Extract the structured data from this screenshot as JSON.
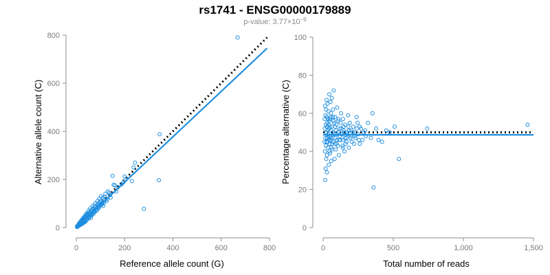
{
  "header": {
    "title": "rs1741 - ENSG00000179889",
    "pvalue_prefix": "p-value: 3.77×10",
    "pvalue_exponent": "−9"
  },
  "colors": {
    "points": "#1f8ee0",
    "fit_line": "#1f8ee0",
    "reference_line": "#000000",
    "axis": "#8c8c8c"
  },
  "chart_data": [
    {
      "type": "scatter",
      "xlabel": "Reference allele count (G)",
      "ylabel": "Alternative allele count (C)",
      "xlim": [
        0,
        800
      ],
      "ylim": [
        0,
        800
      ],
      "xticks": [
        0,
        200,
        400,
        600,
        800
      ],
      "yticks": [
        0,
        200,
        400,
        600,
        800
      ],
      "xtick_labels": [
        "0",
        "200",
        "400",
        "600",
        "800"
      ],
      "ytick_labels": [
        "0",
        "200",
        "400",
        "600",
        "800"
      ],
      "reference_line": {
        "style": "dotted",
        "x": [
          0,
          790
        ],
        "y": [
          0,
          790
        ]
      },
      "fit_line": {
        "style": "solid",
        "x": [
          0,
          790
        ],
        "y": [
          0,
          745
        ]
      },
      "points": [
        [
          668,
          790
        ],
        [
          345,
          388
        ],
        [
          342,
          197
        ],
        [
          280,
          78
        ],
        [
          243,
          270
        ],
        [
          237,
          250
        ],
        [
          230,
          193
        ],
        [
          208,
          203
        ],
        [
          195,
          188
        ],
        [
          200,
          212
        ],
        [
          188,
          180
        ],
        [
          172,
          168
        ],
        [
          165,
          150
        ],
        [
          150,
          215
        ],
        [
          155,
          178
        ],
        [
          160,
          175
        ],
        [
          140,
          135
        ],
        [
          130,
          150
        ],
        [
          120,
          140
        ],
        [
          125,
          110
        ],
        [
          110,
          125
        ],
        [
          115,
          105
        ],
        [
          100,
          110
        ],
        [
          105,
          95
        ],
        [
          95,
          120
        ],
        [
          90,
          100
        ],
        [
          92,
          80
        ],
        [
          85,
          95
        ],
        [
          80,
          85
        ],
        [
          82,
          75
        ],
        [
          78,
          100
        ],
        [
          75,
          70
        ],
        [
          72,
          80
        ],
        [
          70,
          65
        ],
        [
          68,
          90
        ],
        [
          65,
          60
        ],
        [
          62,
          72
        ],
        [
          60,
          55
        ],
        [
          58,
          68
        ],
        [
          55,
          62
        ],
        [
          52,
          50
        ],
        [
          50,
          58
        ],
        [
          48,
          45
        ],
        [
          47,
          55
        ],
        [
          45,
          50
        ],
        [
          44,
          40
        ],
        [
          42,
          48
        ],
        [
          40,
          38
        ],
        [
          39,
          45
        ],
        [
          38,
          35
        ],
        [
          36,
          42
        ],
        [
          35,
          30
        ],
        [
          34,
          38
        ],
        [
          33,
          28
        ],
        [
          32,
          36
        ],
        [
          30,
          33
        ],
        [
          29,
          25
        ],
        [
          28,
          31
        ],
        [
          27,
          30
        ],
        [
          26,
          22
        ],
        [
          25,
          28
        ],
        [
          24,
          26
        ],
        [
          23,
          20
        ],
        [
          22,
          25
        ],
        [
          21,
          23
        ],
        [
          20,
          18
        ],
        [
          20,
          22
        ],
        [
          19,
          21
        ],
        [
          18,
          17
        ],
        [
          18,
          20
        ],
        [
          17,
          19
        ],
        [
          16,
          15
        ],
        [
          16,
          18
        ],
        [
          15,
          17
        ],
        [
          14,
          13
        ],
        [
          14,
          16
        ],
        [
          13,
          15
        ],
        [
          12,
          11
        ],
        [
          12,
          14
        ],
        [
          11,
          13
        ],
        [
          10,
          9
        ],
        [
          10,
          12
        ],
        [
          9,
          11
        ],
        [
          9,
          8
        ],
        [
          8,
          10
        ],
        [
          8,
          7
        ],
        [
          7,
          9
        ],
        [
          7,
          6
        ],
        [
          6,
          8
        ],
        [
          6,
          5
        ],
        [
          5,
          7
        ],
        [
          5,
          4
        ],
        [
          4,
          6
        ],
        [
          4,
          3
        ],
        [
          3,
          5
        ],
        [
          3,
          2
        ],
        [
          60,
          40
        ],
        [
          55,
          45
        ],
        [
          65,
          75
        ],
        [
          70,
          55
        ],
        [
          75,
          88
        ],
        [
          85,
          70
        ],
        [
          88,
          110
        ],
        [
          95,
          85
        ],
        [
          98,
          105
        ],
        [
          102,
          130
        ],
        [
          108,
          98
        ],
        [
          112,
          90
        ],
        [
          118,
          128
        ],
        [
          128,
          118
        ],
        [
          135,
          145
        ],
        [
          142,
          125
        ],
        [
          58,
          80
        ],
        [
          50,
          70
        ],
        [
          45,
          60
        ],
        [
          40,
          55
        ],
        [
          35,
          48
        ],
        [
          31,
          42
        ],
        [
          28,
          38
        ],
        [
          26,
          35
        ],
        [
          24,
          32
        ],
        [
          22,
          30
        ],
        [
          21,
          28
        ],
        [
          19,
          26
        ],
        [
          17,
          24
        ],
        [
          15,
          21
        ],
        [
          13,
          19
        ],
        [
          11,
          17
        ],
        [
          38,
          25
        ],
        [
          33,
          22
        ],
        [
          30,
          20
        ],
        [
          27,
          18
        ],
        [
          25,
          16
        ],
        [
          23,
          15
        ],
        [
          20,
          14
        ],
        [
          18,
          12
        ],
        [
          16,
          11
        ],
        [
          14,
          10
        ],
        [
          12,
          9
        ],
        [
          10,
          7
        ],
        [
          42,
          30
        ],
        [
          46,
          35
        ],
        [
          52,
          40
        ],
        [
          57,
          48
        ],
        [
          62,
          50
        ],
        [
          66,
          58
        ],
        [
          73,
          62
        ],
        [
          77,
          66
        ],
        [
          83,
          78
        ],
        [
          87,
          82
        ],
        [
          92,
          90
        ],
        [
          97,
          92
        ],
        [
          103,
          100
        ],
        [
          107,
          102
        ],
        [
          113,
          112
        ],
        [
          117,
          114
        ]
      ]
    },
    {
      "type": "scatter",
      "xlabel": "Total number of reads",
      "ylabel": "Percentage alternative (C)",
      "xlim": [
        0,
        1500
      ],
      "ylim": [
        0,
        100
      ],
      "xticks": [
        0,
        500,
        1000,
        1500
      ],
      "yticks": [
        0,
        20,
        40,
        60,
        80,
        100
      ],
      "xtick_labels": [
        "0",
        "500",
        "1,000",
        "1,500"
      ],
      "ytick_labels": [
        "0",
        "20",
        "40",
        "60",
        "80",
        "100"
      ],
      "reference_line": {
        "style": "dotted",
        "x": [
          0,
          1500
        ],
        "y": [
          50,
          50
        ]
      },
      "fit_line": {
        "style": "solid",
        "x": [
          0,
          1500
        ],
        "y": [
          48.7,
          48.7
        ]
      },
      "points": [
        [
          1458,
          54
        ],
        [
          742,
          52
        ],
        [
          540,
          36
        ],
        [
          360,
          21
        ],
        [
          352,
          60
        ],
        [
          378,
          52
        ],
        [
          395,
          46
        ],
        [
          420,
          45
        ],
        [
          450,
          51
        ],
        [
          475,
          50
        ],
        [
          510,
          53
        ],
        [
          320,
          55
        ],
        [
          305,
          48
        ],
        [
          290,
          50
        ],
        [
          280,
          46
        ],
        [
          270,
          52
        ],
        [
          262,
          44
        ],
        [
          250,
          49
        ],
        [
          245,
          55
        ],
        [
          238,
          58
        ],
        [
          230,
          47
        ],
        [
          222,
          50
        ],
        [
          215,
          53
        ],
        [
          205,
          45
        ],
        [
          198,
          48
        ],
        [
          190,
          55
        ],
        [
          183,
          42
        ],
        [
          178,
          59
        ],
        [
          170,
          50
        ],
        [
          165,
          47
        ],
        [
          158,
          54
        ],
        [
          152,
          40
        ],
        [
          148,
          51
        ],
        [
          142,
          57
        ],
        [
          138,
          43
        ],
        [
          132,
          49
        ],
        [
          128,
          60
        ],
        [
          122,
          46
        ],
        [
          118,
          52
        ],
        [
          112,
          38
        ],
        [
          108,
          56
        ],
        [
          104,
          49
        ],
        [
          100,
          63
        ],
        [
          96,
          44
        ],
        [
          92,
          51
        ],
        [
          88,
          47
        ],
        [
          85,
          58
        ],
        [
          82,
          36
        ],
        [
          78,
          55
        ],
        [
          75,
          72
        ],
        [
          72,
          45
        ],
        [
          70,
          62
        ],
        [
          68,
          50
        ],
        [
          65,
          41
        ],
        [
          62,
          68
        ],
        [
          60,
          53
        ],
        [
          58,
          35
        ],
        [
          56,
          60
        ],
        [
          54,
          47
        ],
        [
          52,
          66
        ],
        [
          50,
          39
        ],
        [
          48,
          57
        ],
        [
          46,
          44
        ],
        [
          44,
          70
        ],
        [
          42,
          52
        ],
        [
          40,
          33
        ],
        [
          38,
          61
        ],
        [
          36,
          48
        ],
        [
          34,
          42
        ],
        [
          32,
          65
        ],
        [
          30,
          55
        ],
        [
          28,
          38
        ],
        [
          27,
          29
        ],
        [
          26,
          58
        ],
        [
          25,
          45
        ],
        [
          24,
          67
        ],
        [
          23,
          50
        ],
        [
          22,
          36
        ],
        [
          21,
          62
        ],
        [
          20,
          43
        ],
        [
          19,
          54
        ],
        [
          18,
          31
        ],
        [
          17,
          59
        ],
        [
          16,
          47
        ],
        [
          15,
          25
        ],
        [
          14,
          64
        ],
        [
          13,
          40
        ],
        [
          12,
          52
        ],
        [
          11,
          57
        ],
        [
          10,
          45
        ],
        [
          120,
          48
        ],
        [
          130,
          52
        ],
        [
          140,
          46
        ],
        [
          150,
          50
        ],
        [
          160,
          44
        ],
        [
          175,
          49
        ],
        [
          185,
          51
        ],
        [
          195,
          47
        ],
        [
          210,
          50
        ],
        [
          225,
          48
        ],
        [
          240,
          52
        ],
        [
          255,
          46
        ],
        [
          90,
          41
        ],
        [
          95,
          54
        ],
        [
          105,
          43
        ],
        [
          110,
          57
        ],
        [
          115,
          46
        ],
        [
          125,
          55
        ],
        [
          135,
          49
        ],
        [
          145,
          53
        ],
        [
          155,
          47
        ],
        [
          168,
          45
        ],
        [
          80,
          49
        ],
        [
          86,
          53
        ],
        [
          66,
          47
        ],
        [
          74,
          56
        ],
        [
          64,
          44
        ],
        [
          58,
          51
        ],
        [
          55,
          46
        ],
        [
          53,
          58
        ],
        [
          49,
          48
        ],
        [
          47,
          53
        ],
        [
          45,
          40
        ],
        [
          43,
          56
        ],
        [
          41,
          46
        ],
        [
          39,
          54
        ],
        [
          37,
          49
        ],
        [
          35,
          57
        ],
        [
          33,
          45
        ],
        [
          31,
          51
        ],
        [
          29,
          47
        ],
        [
          27,
          53
        ],
        [
          60,
          42
        ],
        [
          70,
          58
        ],
        [
          85,
          44
        ],
        [
          100,
          46
        ],
        [
          110,
          50
        ],
        [
          140,
          42
        ],
        [
          180,
          53
        ],
        [
          200,
          51
        ],
        [
          220,
          44
        ],
        [
          260,
          53
        ],
        [
          300,
          51
        ],
        [
          340,
          47
        ]
      ]
    }
  ]
}
